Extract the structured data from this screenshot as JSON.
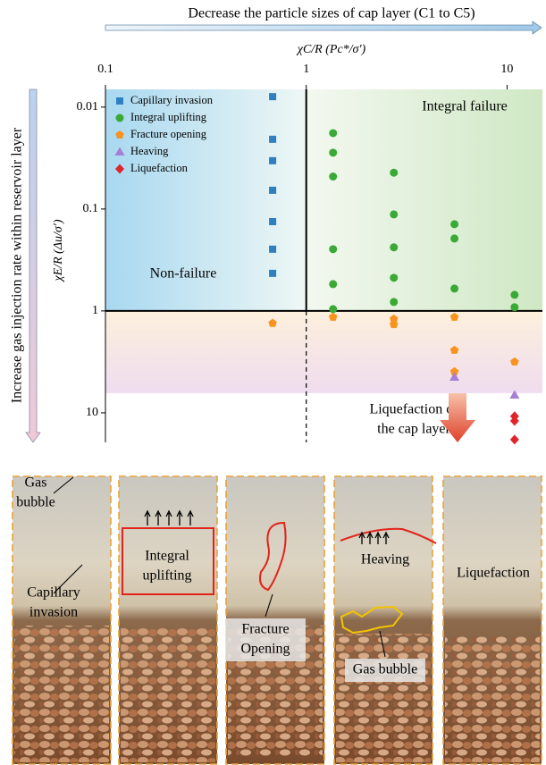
{
  "chart_data": {
    "type": "scatter",
    "top_arrow_label": "Decrease the particle sizes of cap layer (C1 to C5)",
    "left_arrow_label": "Increase gas injection rate within reservoir layer",
    "x_label": "χC/R (Pc*/σ′)",
    "y_label": "χE/R (Δu/σ′)",
    "x_log": true,
    "y_log": true,
    "y_inverted": true,
    "xlim": [
      0.1,
      15
    ],
    "ylim": [
      0.0067,
      19.5
    ],
    "xticks": [
      0.1,
      1,
      10
    ],
    "yticks": [
      0.01,
      0.1,
      1,
      10
    ],
    "band_ylim": [
      1,
      6.4
    ],
    "legend": "upper left",
    "annotations": [
      "Integral failure",
      "Non-failure",
      "Liquefaction of",
      "the cap layer"
    ],
    "series": [
      {
        "name": "Capillary invasion",
        "color": "#2f7fc1",
        "marker": "square",
        "x": [
          0.68,
          0.68,
          0.68,
          0.68,
          0.68,
          0.68,
          0.68
        ],
        "values": [
          0.0079,
          0.0207,
          0.0336,
          0.0655,
          0.133,
          0.248,
          0.428
        ]
      },
      {
        "name": "Integral uplifting",
        "color": "#3aa935",
        "marker": "circle",
        "x": [
          1.36,
          1.36,
          1.36,
          1.36,
          1.36,
          1.36,
          2.73,
          2.73,
          2.73,
          2.73,
          2.73,
          5.47,
          5.47,
          5.47,
          10.9,
          10.9
        ],
        "values": [
          0.018,
          0.028,
          0.048,
          0.248,
          0.546,
          0.96,
          0.044,
          0.113,
          0.238,
          0.473,
          0.817,
          0.141,
          0.195,
          0.604,
          0.695,
          0.92
        ]
      },
      {
        "name": "Fracture opening",
        "color": "#f7931e",
        "marker": "pentagon",
        "x": [
          0.68,
          1.36,
          2.73,
          2.73,
          5.47,
          5.47,
          5.47,
          10.9
        ],
        "values": [
          1.32,
          1.15,
          1.2,
          1.36,
          1.15,
          2.43,
          3.95,
          3.16
        ]
      },
      {
        "name": "Heaving",
        "color": "#a57fd4",
        "marker": "triangle",
        "x": [
          5.47,
          10.9
        ],
        "values": [
          4.46,
          6.68
        ]
      },
      {
        "name": "Liquefaction",
        "color": "#e0252a",
        "marker": "diamond",
        "x": [
          10.9,
          10.9,
          10.9
        ],
        "values": [
          10.8,
          12.0,
          18.3
        ]
      }
    ]
  },
  "photo_panels": [
    {
      "labels": [
        [
          "Gas",
          "bubble"
        ],
        [
          "Capillary",
          "invasion"
        ]
      ]
    },
    {
      "labels": [
        [
          "Integral",
          "uplifting"
        ]
      ]
    },
    {
      "labels": [
        [
          "Fracture",
          "Opening"
        ]
      ]
    },
    {
      "labels": [
        [
          "Heaving"
        ],
        [
          "Gas bubble"
        ]
      ]
    },
    {
      "labels": [
        [
          "Liquefaction"
        ]
      ]
    }
  ]
}
